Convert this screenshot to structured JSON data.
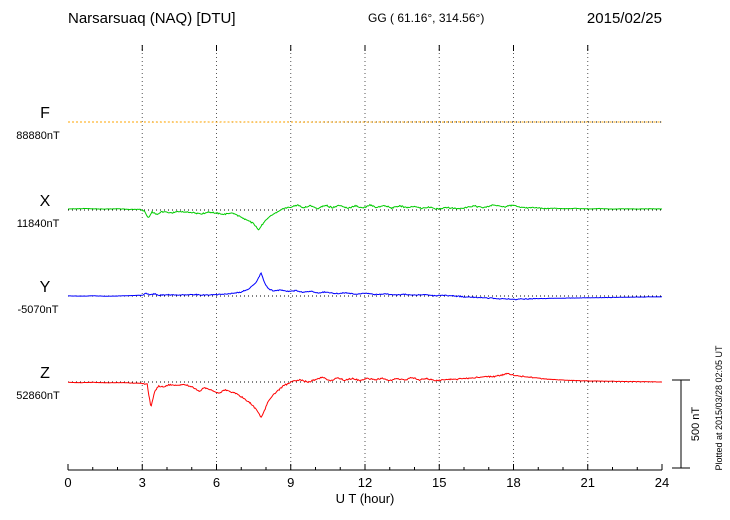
{
  "header": {
    "station": "Narsarsuaq (NAQ)  [DTU]",
    "coords": "GG ( 61.16°, 314.56°)",
    "date": "2015/02/25"
  },
  "axis": {
    "ticks": [
      0,
      3,
      6,
      9,
      12,
      15,
      18,
      21,
      24
    ]
  },
  "scalebar": {
    "label": "500 nT",
    "nT": 500
  },
  "footnote": "Plotted at 2015/03/28 02:05 UT",
  "chart_data": {
    "type": "line",
    "title": "Narsarsuaq (NAQ) [DTU] magnetogram",
    "xlabel": "U T (hour)",
    "ylabel": "",
    "x_range": [
      0,
      24
    ],
    "gridline_hours": [
      3,
      6,
      9,
      12,
      15,
      18,
      21
    ],
    "scale_nT": 500,
    "noise_envelope": [
      [
        0,
        0.25
      ],
      [
        2.8,
        0.3
      ],
      [
        3.2,
        1
      ],
      [
        18.5,
        1
      ],
      [
        19.5,
        0.35
      ],
      [
        24,
        0.25
      ]
    ],
    "series": [
      {
        "name": "F",
        "baseline_label": "88880nT",
        "color": "#ffa500",
        "noise": 0.8,
        "anchors": [
          [
            0,
            0
          ],
          [
            6,
            0
          ],
          [
            12,
            0
          ],
          [
            18,
            0
          ],
          [
            24,
            0
          ]
        ]
      },
      {
        "name": "X",
        "baseline_label": "11840nT",
        "color": "#00cc00",
        "noise": 5,
        "anchors": [
          [
            0,
            6
          ],
          [
            0.7,
            8
          ],
          [
            1.4,
            5
          ],
          [
            2,
            7
          ],
          [
            2.5,
            3
          ],
          [
            2.9,
            4
          ],
          [
            3.1,
            -8
          ],
          [
            3.25,
            -45
          ],
          [
            3.4,
            -12
          ],
          [
            3.6,
            -25
          ],
          [
            3.8,
            -10
          ],
          [
            4.2,
            -14
          ],
          [
            4.6,
            -8
          ],
          [
            5,
            -14
          ],
          [
            5.4,
            -22
          ],
          [
            5.7,
            -12
          ],
          [
            6,
            -18
          ],
          [
            6.3,
            -25
          ],
          [
            6.6,
            -15
          ],
          [
            6.9,
            -32
          ],
          [
            7.1,
            -48
          ],
          [
            7.3,
            -60
          ],
          [
            7.5,
            -75
          ],
          [
            7.7,
            -112
          ],
          [
            7.85,
            -80
          ],
          [
            8,
            -55
          ],
          [
            8.2,
            -30
          ],
          [
            8.45,
            -10
          ],
          [
            8.7,
            8
          ],
          [
            9,
            14
          ],
          [
            9.3,
            28
          ],
          [
            9.5,
            12
          ],
          [
            9.8,
            24
          ],
          [
            10.1,
            8
          ],
          [
            10.4,
            26
          ],
          [
            10.7,
            12
          ],
          [
            11,
            24
          ],
          [
            11.3,
            10
          ],
          [
            11.6,
            22
          ],
          [
            11.9,
            12
          ],
          [
            12.2,
            26
          ],
          [
            12.5,
            14
          ],
          [
            12.8,
            24
          ],
          [
            13.1,
            10
          ],
          [
            13.4,
            22
          ],
          [
            13.7,
            12
          ],
          [
            14,
            20
          ],
          [
            14.3,
            8
          ],
          [
            14.6,
            16
          ],
          [
            15,
            4
          ],
          [
            15.3,
            14
          ],
          [
            15.7,
            6
          ],
          [
            16,
            12
          ],
          [
            16.4,
            22
          ],
          [
            16.8,
            14
          ],
          [
            17.2,
            28
          ],
          [
            17.6,
            18
          ],
          [
            18,
            26
          ],
          [
            18.4,
            12
          ],
          [
            18.8,
            14
          ],
          [
            19.2,
            8
          ],
          [
            19.6,
            10
          ],
          [
            20,
            7
          ],
          [
            20.5,
            9
          ],
          [
            21,
            6
          ],
          [
            21.5,
            8
          ],
          [
            22,
            5
          ],
          [
            22.5,
            7
          ],
          [
            23,
            5
          ],
          [
            23.5,
            7
          ],
          [
            24,
            6
          ]
        ]
      },
      {
        "name": "Y",
        "baseline_label": "-5070nT",
        "color": "#0000ff",
        "noise": 3.5,
        "anchors": [
          [
            0,
            1
          ],
          [
            0.5,
            -1
          ],
          [
            1,
            1
          ],
          [
            1.5,
            -1
          ],
          [
            2,
            0
          ],
          [
            2.5,
            2
          ],
          [
            3,
            4
          ],
          [
            3.15,
            16
          ],
          [
            3.3,
            6
          ],
          [
            3.5,
            12
          ],
          [
            3.7,
            4
          ],
          [
            4,
            7
          ],
          [
            4.5,
            5
          ],
          [
            5,
            8
          ],
          [
            5.5,
            5
          ],
          [
            6,
            8
          ],
          [
            6.5,
            12
          ],
          [
            7,
            22
          ],
          [
            7.3,
            38
          ],
          [
            7.6,
            75
          ],
          [
            7.8,
            128
          ],
          [
            7.95,
            70
          ],
          [
            8.1,
            40
          ],
          [
            8.3,
            28
          ],
          [
            8.6,
            34
          ],
          [
            8.9,
            24
          ],
          [
            9.2,
            30
          ],
          [
            9.5,
            20
          ],
          [
            9.8,
            26
          ],
          [
            10.1,
            16
          ],
          [
            10.4,
            22
          ],
          [
            10.8,
            12
          ],
          [
            11.2,
            18
          ],
          [
            11.6,
            10
          ],
          [
            12,
            15
          ],
          [
            12.4,
            8
          ],
          [
            12.8,
            12
          ],
          [
            13.2,
            6
          ],
          [
            13.6,
            10
          ],
          [
            14,
            4
          ],
          [
            14.4,
            8
          ],
          [
            14.8,
            2
          ],
          [
            15.2,
            4
          ],
          [
            15.6,
            0
          ],
          [
            16,
            -4
          ],
          [
            16.5,
            -8
          ],
          [
            17,
            -12
          ],
          [
            17.5,
            -16
          ],
          [
            18,
            -18
          ],
          [
            18.5,
            -16
          ],
          [
            19,
            -15
          ],
          [
            19.5,
            -13
          ],
          [
            20,
            -12
          ],
          [
            20.5,
            -11
          ],
          [
            21,
            -10
          ],
          [
            21.5,
            -9
          ],
          [
            22,
            -8
          ],
          [
            22.5,
            -7
          ],
          [
            23,
            -6
          ],
          [
            23.5,
            -5
          ],
          [
            24,
            -5
          ]
        ]
      },
      {
        "name": "Z",
        "baseline_label": "52860nT",
        "color": "#ff0000",
        "noise": 5,
        "anchors": [
          [
            0,
            -2
          ],
          [
            0.5,
            -4
          ],
          [
            1,
            -2
          ],
          [
            1.5,
            -4
          ],
          [
            2,
            -3
          ],
          [
            2.5,
            -5
          ],
          [
            3,
            -8
          ],
          [
            3.2,
            -12
          ],
          [
            3.35,
            -140
          ],
          [
            3.5,
            -55
          ],
          [
            3.65,
            -22
          ],
          [
            3.9,
            -28
          ],
          [
            4.1,
            -14
          ],
          [
            4.4,
            -20
          ],
          [
            4.7,
            -14
          ],
          [
            5,
            -26
          ],
          [
            5.3,
            -52
          ],
          [
            5.5,
            -32
          ],
          [
            5.8,
            -46
          ],
          [
            6.1,
            -62
          ],
          [
            6.35,
            -42
          ],
          [
            6.6,
            -55
          ],
          [
            6.8,
            -65
          ],
          [
            7,
            -82
          ],
          [
            7.2,
            -100
          ],
          [
            7.4,
            -122
          ],
          [
            7.6,
            -152
          ],
          [
            7.8,
            -196
          ],
          [
            7.95,
            -155
          ],
          [
            8.1,
            -105
          ],
          [
            8.3,
            -70
          ],
          [
            8.5,
            -45
          ],
          [
            8.7,
            -22
          ],
          [
            8.9,
            -8
          ],
          [
            9.1,
            4
          ],
          [
            9.4,
            12
          ],
          [
            9.7,
            -2
          ],
          [
            10,
            14
          ],
          [
            10.3,
            26
          ],
          [
            10.6,
            8
          ],
          [
            10.9,
            22
          ],
          [
            11.2,
            10
          ],
          [
            11.5,
            20
          ],
          [
            11.8,
            8
          ],
          [
            12.1,
            22
          ],
          [
            12.4,
            12
          ],
          [
            12.7,
            20
          ],
          [
            13,
            8
          ],
          [
            13.3,
            18
          ],
          [
            13.6,
            10
          ],
          [
            13.9,
            24
          ],
          [
            14.2,
            12
          ],
          [
            14.5,
            18
          ],
          [
            14.8,
            8
          ],
          [
            15.2,
            12
          ],
          [
            15.6,
            16
          ],
          [
            16,
            18
          ],
          [
            16.5,
            26
          ],
          [
            17,
            30
          ],
          [
            17.4,
            34
          ],
          [
            17.8,
            48
          ],
          [
            18,
            36
          ],
          [
            18.4,
            30
          ],
          [
            18.8,
            24
          ],
          [
            19.2,
            18
          ],
          [
            19.6,
            14
          ],
          [
            20,
            11
          ],
          [
            20.5,
            8
          ],
          [
            21,
            6
          ],
          [
            21.5,
            5
          ],
          [
            22,
            4
          ],
          [
            22.5,
            3
          ],
          [
            23,
            2
          ],
          [
            23.5,
            1
          ],
          [
            24,
            0
          ]
        ]
      }
    ]
  }
}
